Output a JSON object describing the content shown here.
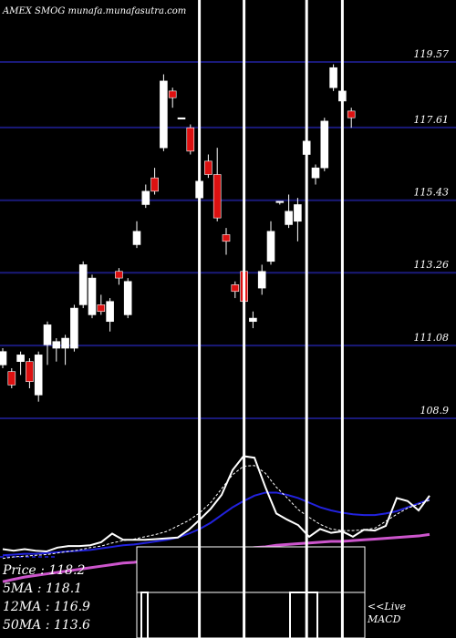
{
  "chart_data": {
    "type": "candlestick",
    "header": "AMEX  SMOG munafa.munafasutra.com",
    "price_levels": [
      119.57,
      117.61,
      115.43,
      113.26,
      111.08,
      108.9
    ],
    "ylim": [
      107.0,
      121.0
    ],
    "candles": [
      {
        "o": 110.9,
        "c": 110.5,
        "h": 111.0,
        "l": 110.4,
        "dir": "up"
      },
      {
        "o": 110.3,
        "c": 109.9,
        "h": 110.4,
        "l": 109.8,
        "dir": "down"
      },
      {
        "o": 110.6,
        "c": 110.8,
        "h": 110.9,
        "l": 110.2,
        "dir": "up"
      },
      {
        "o": 110.6,
        "c": 110.0,
        "h": 110.7,
        "l": 109.8,
        "dir": "down"
      },
      {
        "o": 109.6,
        "c": 110.8,
        "h": 110.9,
        "l": 109.4,
        "dir": "up"
      },
      {
        "o": 111.1,
        "c": 111.7,
        "h": 111.8,
        "l": 110.5,
        "dir": "up"
      },
      {
        "o": 111.0,
        "c": 111.2,
        "h": 111.3,
        "l": 110.6,
        "dir": "up"
      },
      {
        "o": 111.3,
        "c": 111.0,
        "h": 111.4,
        "l": 110.5,
        "dir": "up"
      },
      {
        "o": 111.0,
        "c": 112.2,
        "h": 112.3,
        "l": 110.9,
        "dir": "up"
      },
      {
        "o": 112.3,
        "c": 113.5,
        "h": 113.6,
        "l": 112.2,
        "dir": "up"
      },
      {
        "o": 113.1,
        "c": 112.0,
        "h": 113.2,
        "l": 111.9,
        "dir": "up"
      },
      {
        "o": 112.3,
        "c": 112.1,
        "h": 112.6,
        "l": 112.0,
        "dir": "down"
      },
      {
        "o": 112.4,
        "c": 111.8,
        "h": 112.5,
        "l": 111.5,
        "dir": "up"
      },
      {
        "o": 113.1,
        "c": 113.3,
        "h": 113.4,
        "l": 112.9,
        "dir": "down"
      },
      {
        "o": 112.0,
        "c": 113.0,
        "h": 113.1,
        "l": 111.9,
        "dir": "up"
      },
      {
        "o": 114.1,
        "c": 114.5,
        "h": 114.8,
        "l": 114.0,
        "dir": "up"
      },
      {
        "o": 115.3,
        "c": 115.7,
        "h": 115.9,
        "l": 115.2,
        "dir": "up"
      },
      {
        "o": 115.7,
        "c": 116.1,
        "h": 116.4,
        "l": 115.6,
        "dir": "down"
      },
      {
        "o": 117.0,
        "c": 119.0,
        "h": 119.2,
        "l": 116.9,
        "dir": "up"
      },
      {
        "o": 118.7,
        "c": 118.5,
        "h": 118.8,
        "l": 118.2,
        "dir": "down"
      },
      {
        "o": 117.9,
        "c": 117.9,
        "h": 117.9,
        "l": 117.9,
        "dir": "up"
      },
      {
        "o": 117.6,
        "c": 116.9,
        "h": 117.7,
        "l": 116.8,
        "dir": "down"
      },
      {
        "o": 116.0,
        "c": 115.5,
        "h": 116.1,
        "l": 115.4,
        "dir": "up"
      },
      {
        "o": 116.6,
        "c": 116.2,
        "h": 116.8,
        "l": 116.1,
        "dir": "down"
      },
      {
        "o": 116.2,
        "c": 114.9,
        "h": 117.0,
        "l": 114.8,
        "dir": "down"
      },
      {
        "o": 114.4,
        "c": 114.2,
        "h": 114.6,
        "l": 113.8,
        "dir": "down"
      },
      {
        "o": 112.9,
        "c": 112.7,
        "h": 113.0,
        "l": 112.5,
        "dir": "down"
      },
      {
        "o": 113.3,
        "c": 112.4,
        "h": 113.4,
        "l": 111.8,
        "dir": "down"
      },
      {
        "o": 111.9,
        "c": 111.8,
        "h": 112.1,
        "l": 111.6,
        "dir": "up"
      },
      {
        "o": 112.8,
        "c": 113.3,
        "h": 113.5,
        "l": 112.6,
        "dir": "up"
      },
      {
        "o": 113.6,
        "c": 114.5,
        "h": 114.8,
        "l": 113.5,
        "dir": "up"
      },
      {
        "o": 115.4,
        "c": 115.4,
        "h": 115.4,
        "l": 115.3,
        "dir": "up"
      },
      {
        "o": 114.7,
        "c": 115.1,
        "h": 115.6,
        "l": 114.6,
        "dir": "up"
      },
      {
        "o": 115.3,
        "c": 114.8,
        "h": 115.5,
        "l": 114.2,
        "dir": "up"
      },
      {
        "o": 116.8,
        "c": 117.2,
        "h": 117.3,
        "l": 116.7,
        "dir": "up"
      },
      {
        "o": 116.1,
        "c": 116.4,
        "h": 116.5,
        "l": 115.9,
        "dir": "up"
      },
      {
        "o": 116.4,
        "c": 117.8,
        "h": 117.9,
        "l": 116.3,
        "dir": "up"
      },
      {
        "o": 118.8,
        "c": 119.4,
        "h": 119.5,
        "l": 118.7,
        "dir": "up"
      },
      {
        "o": 118.4,
        "c": 118.7,
        "h": 119.4,
        "l": 118.2,
        "dir": "up"
      },
      {
        "o": 118.1,
        "c": 117.9,
        "h": 118.2,
        "l": 117.6,
        "dir": "down"
      }
    ],
    "vertical_markers": [
      22,
      27,
      34,
      38
    ],
    "indicator_panel": {
      "price_line": [
        30,
        28,
        30,
        28,
        27,
        32,
        34,
        34,
        35,
        39,
        50,
        42,
        42,
        42,
        43,
        44,
        45,
        55,
        68,
        82,
        100,
        132,
        150,
        148,
        110,
        76,
        68,
        61,
        46,
        56,
        51,
        53,
        46,
        55,
        54,
        60,
        96,
        92,
        80,
        99
      ],
      "ma_short": [
        18,
        20,
        21,
        22,
        23,
        25,
        27,
        29,
        32,
        34,
        38,
        41,
        43,
        46,
        49,
        53,
        60,
        67,
        77,
        90,
        108,
        126,
        137,
        138,
        128,
        110,
        96,
        81,
        71,
        62,
        56,
        54,
        54,
        55,
        57,
        66,
        75,
        83,
        88,
        93
      ],
      "ma_long": [
        22,
        23,
        24,
        24,
        25,
        26,
        27,
        28,
        29,
        31,
        33,
        35,
        36,
        38,
        40,
        42,
        45,
        50,
        56,
        64,
        74,
        84,
        92,
        99,
        103,
        103,
        100,
        96,
        90,
        84,
        80,
        77,
        75,
        74,
        74,
        76,
        79,
        84,
        89,
        94
      ],
      "ma_slow": [
        -12,
        -9,
        -6,
        -4,
        -2,
        0,
        2,
        4,
        6,
        8,
        10,
        12,
        13,
        15,
        16,
        18,
        20,
        21,
        22,
        24,
        26,
        28,
        30,
        32,
        33,
        35,
        36,
        37,
        38,
        39,
        40,
        40,
        41,
        42,
        43,
        44,
        45,
        46,
        47,
        49
      ],
      "baseline": 20
    },
    "readouts": [
      {
        "label": "Price",
        "value": "118.2"
      },
      {
        "label": "5MA",
        "value": "118.1"
      },
      {
        "label": "12MA",
        "value": "116.9"
      },
      {
        "label": "50MA",
        "value": "113.6"
      }
    ],
    "live_label": "<<Live",
    "macd_label": "MACD",
    "colors": {
      "grid": "#1a1a7a",
      "up_candle": "#ffffff",
      "down_candle": "#dd1111",
      "price_line": "#ffffff",
      "ma_long": "#2222dd",
      "ma_slow": "#cc55cc",
      "marker": "#ffffff",
      "text": "#ffffff"
    }
  }
}
